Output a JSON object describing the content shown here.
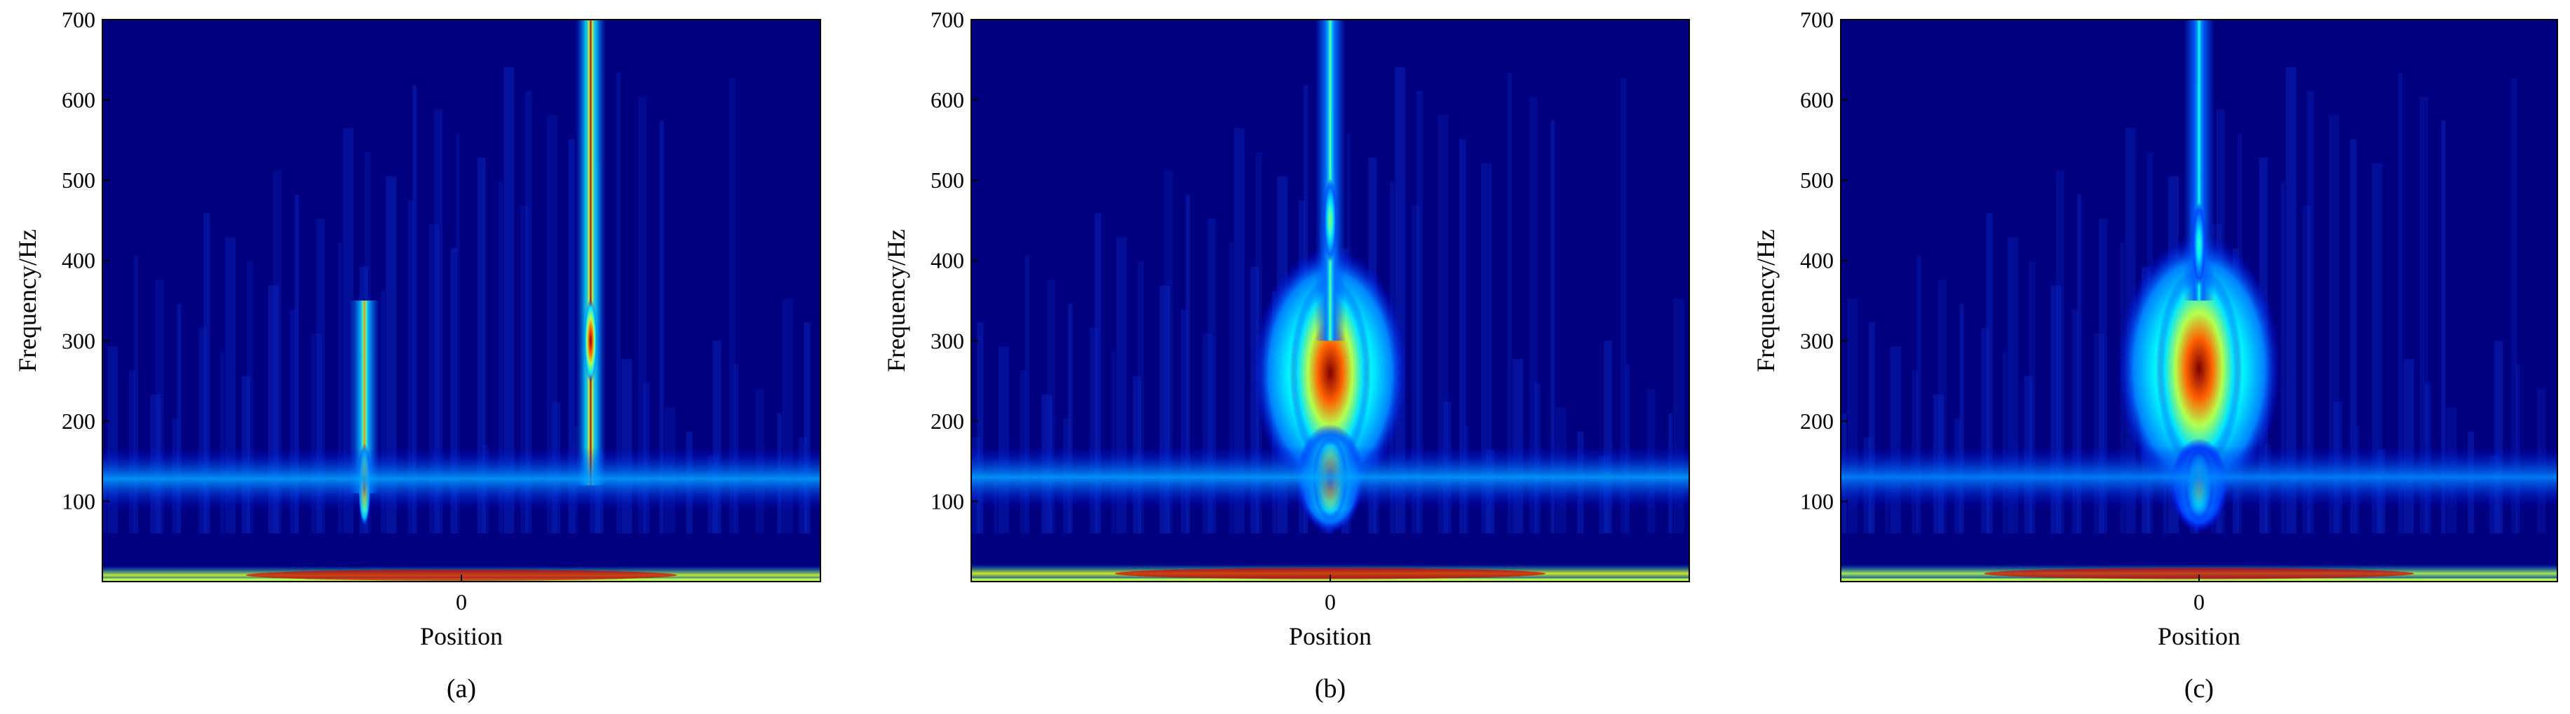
{
  "colors": {
    "background": "#000080",
    "colormap": "jet",
    "axis": "#000000"
  },
  "chart_data": [
    {
      "type": "heatmap",
      "panel_label": "(a)",
      "xlabel": "Position",
      "ylabel": "Frequency/Hz",
      "x_ticks": [
        "0"
      ],
      "y_ticks": [
        100,
        200,
        300,
        400,
        500,
        600,
        700
      ],
      "ylim": [
        0,
        700
      ],
      "xlim": [
        -1,
        1
      ],
      "colorbar": false,
      "features": [
        {
          "kind": "ridge",
          "x": -0.27,
          "f_low": 110,
          "f_high": 350,
          "peak_f": 120,
          "intensity": 0.75
        },
        {
          "kind": "ridge",
          "x": 0.36,
          "f_low": 120,
          "f_high": 700,
          "peak_f": 300,
          "intensity": 1.0
        },
        {
          "kind": "band",
          "f": 128,
          "intensity": 0.3
        },
        {
          "kind": "band",
          "f": 8,
          "intensity": 0.9
        }
      ]
    },
    {
      "type": "heatmap",
      "panel_label": "(b)",
      "xlabel": "Position",
      "ylabel": "Frequency/Hz",
      "x_ticks": [
        "0"
      ],
      "y_ticks": [
        100,
        200,
        300,
        400,
        500,
        600,
        700
      ],
      "ylim": [
        0,
        700
      ],
      "xlim": [
        -1,
        1
      ],
      "colorbar": false,
      "features": [
        {
          "kind": "blob",
          "x": 0.0,
          "f": 260,
          "width_f": 160,
          "intensity": 1.0
        },
        {
          "kind": "blob",
          "x": 0.0,
          "f": 128,
          "width_f": 70,
          "intensity": 0.85
        },
        {
          "kind": "ridge",
          "x": 0.0,
          "f_low": 300,
          "f_high": 700,
          "peak_f": 450,
          "intensity": 0.45
        },
        {
          "kind": "band",
          "f": 130,
          "intensity": 0.3
        },
        {
          "kind": "band",
          "f": 10,
          "intensity": 0.95
        }
      ]
    },
    {
      "type": "heatmap",
      "panel_label": "(c)",
      "xlabel": "Position",
      "ylabel": "Frequency/Hz",
      "x_ticks": [
        "0"
      ],
      "y_ticks": [
        100,
        200,
        300,
        400,
        500,
        600,
        700
      ],
      "ylim": [
        0,
        700
      ],
      "xlim": [
        -1,
        1
      ],
      "colorbar": false,
      "features": [
        {
          "kind": "blob",
          "x": 0.0,
          "f": 265,
          "width_f": 170,
          "intensity": 1.0
        },
        {
          "kind": "blob",
          "x": 0.0,
          "f": 120,
          "width_f": 60,
          "intensity": 0.5
        },
        {
          "kind": "ridge",
          "x": 0.0,
          "f_low": 350,
          "f_high": 700,
          "peak_f": 420,
          "intensity": 0.35
        },
        {
          "kind": "band",
          "f": 130,
          "intensity": 0.25
        },
        {
          "kind": "band",
          "f": 10,
          "intensity": 0.85
        }
      ]
    }
  ]
}
